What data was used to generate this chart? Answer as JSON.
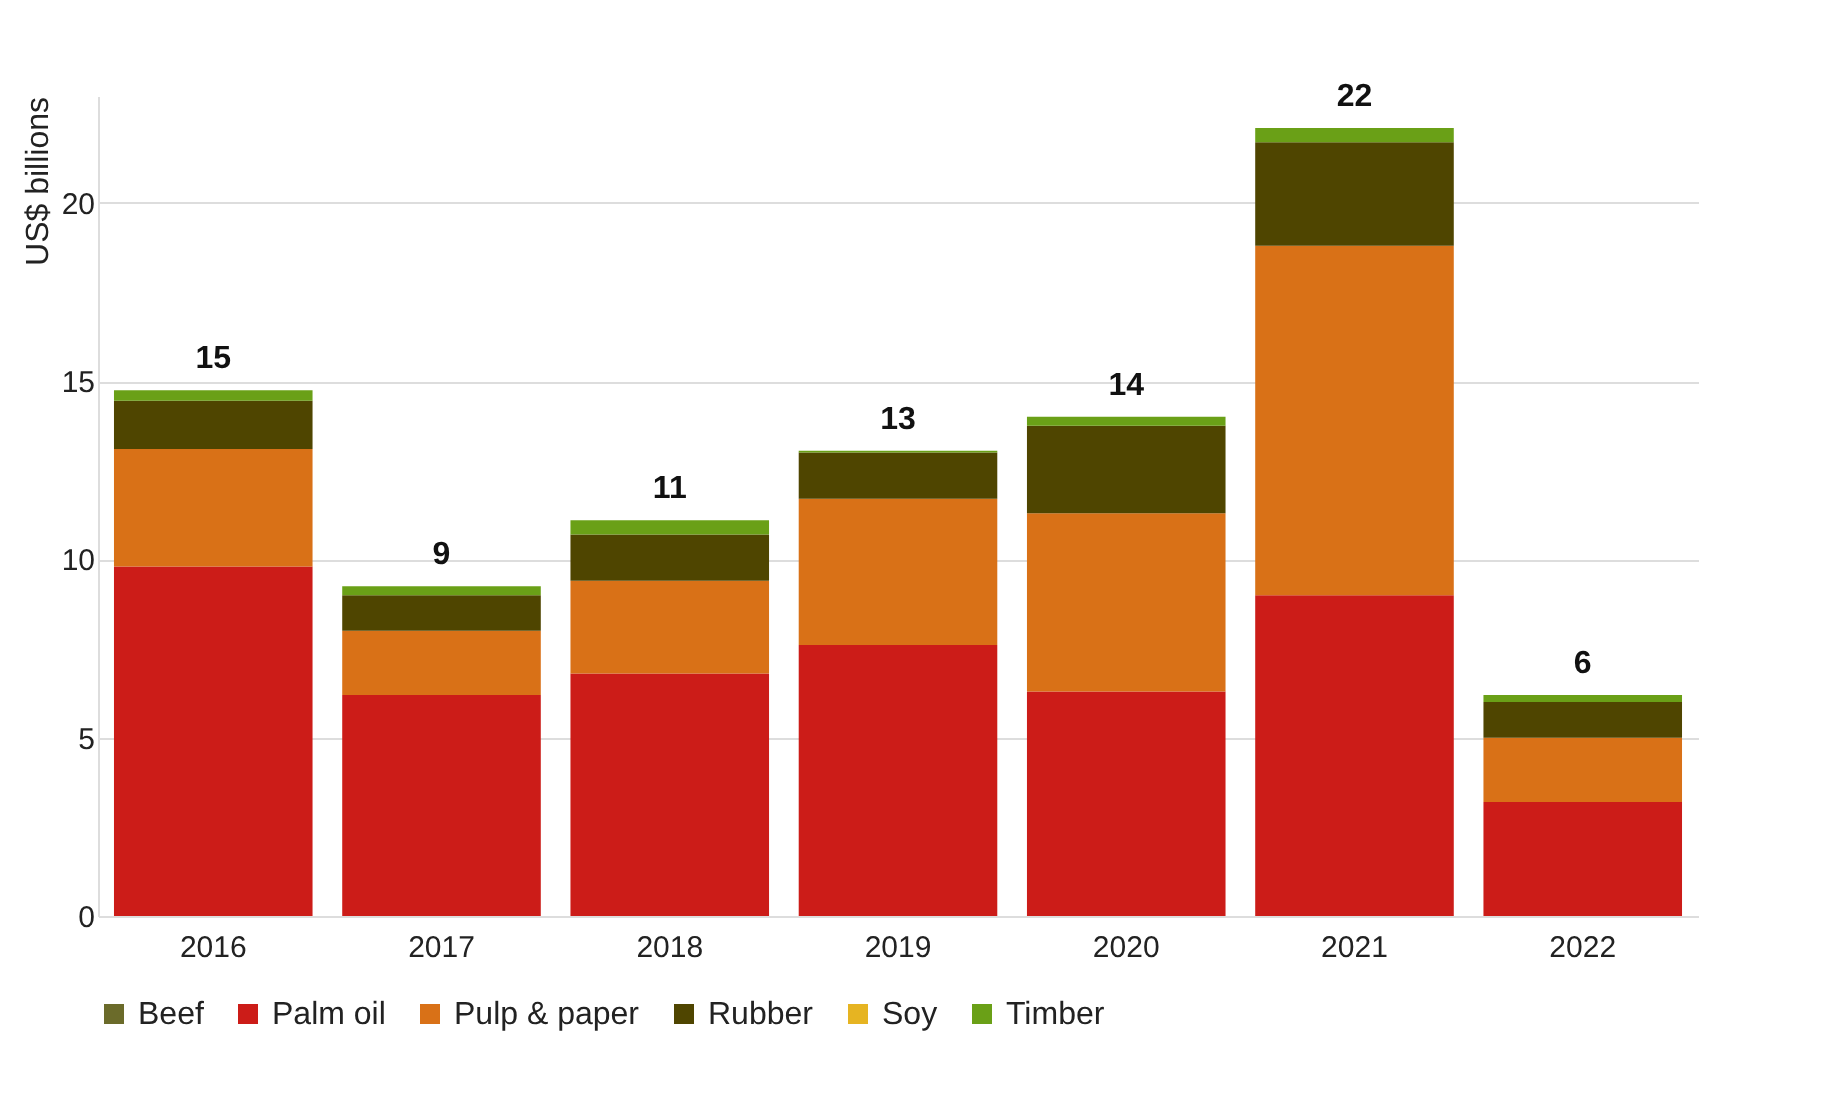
{
  "chart_data": {
    "type": "bar",
    "stacked": true,
    "ylabel": "US$ billions",
    "categories": [
      "2016",
      "2017",
      "2018",
      "2019",
      "2020",
      "2021",
      "2022"
    ],
    "series": [
      {
        "name": "Beef",
        "color": "#6b6b2a",
        "values": [
          0,
          0,
          0,
          0,
          0,
          0,
          0
        ]
      },
      {
        "name": "Palm oil",
        "color": "#cc1c18",
        "values": [
          9.8,
          6.2,
          6.8,
          7.6,
          6.3,
          9.0,
          3.2
        ]
      },
      {
        "name": "Pulp & paper",
        "color": "#d97117",
        "values": [
          3.3,
          1.8,
          2.6,
          4.1,
          5.0,
          9.8,
          1.8
        ]
      },
      {
        "name": "Rubber",
        "color": "#4f4500",
        "values": [
          1.35,
          1.0,
          1.3,
          1.3,
          2.45,
          2.9,
          1.0
        ]
      },
      {
        "name": "Soy",
        "color": "#e6b422",
        "values": [
          0,
          0,
          0,
          0,
          0,
          0,
          0
        ]
      },
      {
        "name": "Timber",
        "color": "#6aa017",
        "values": [
          0.3,
          0.25,
          0.4,
          0.05,
          0.25,
          0.4,
          0.2
        ]
      }
    ],
    "totals": [
      "15",
      "9",
      "11",
      "13",
      "14",
      "22",
      "6"
    ],
    "ylim": [
      0,
      23
    ],
    "yticks": [
      0,
      5,
      10,
      15,
      20
    ],
    "grid": "y",
    "legend": "bottom"
  }
}
